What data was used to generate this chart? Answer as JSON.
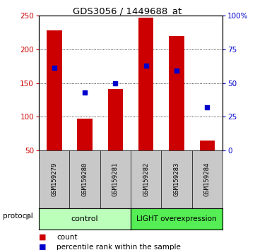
{
  "title": "GDS3056 / 1449688_at",
  "samples": [
    "GSM159279",
    "GSM159280",
    "GSM159281",
    "GSM159282",
    "GSM159283",
    "GSM159284"
  ],
  "counts": [
    228,
    97,
    141,
    247,
    220,
    65
  ],
  "percentiles": [
    61,
    43,
    50,
    63,
    59,
    32
  ],
  "ylim_left": [
    50,
    250
  ],
  "ylim_right": [
    0,
    100
  ],
  "yticks_left": [
    50,
    100,
    150,
    200,
    250
  ],
  "yticks_right": [
    0,
    25,
    50,
    75,
    100
  ],
  "yticklabels_right": [
    "0",
    "25",
    "50",
    "75",
    "100%"
  ],
  "bar_color": "#cc0000",
  "dot_color": "#0000cc",
  "bar_width": 0.5,
  "group_control_label": "control",
  "group_light_label": "LIGHT overexpression",
  "group_control_color": "#bbffbb",
  "group_light_color": "#55ee55",
  "legend_count_label": "count",
  "legend_pct_label": "percentile rank within the sample",
  "protocol_label": "protocol",
  "bg_color": "#ffffff",
  "left_axis_color": "#cc0000",
  "right_axis_color": "#0000cc"
}
